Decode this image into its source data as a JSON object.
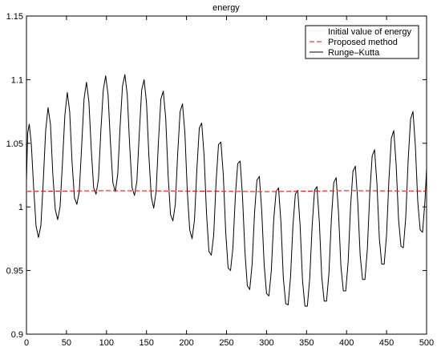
{
  "chart_data": {
    "type": "line",
    "title": "energy",
    "xlabel": "",
    "ylabel": "",
    "xlim": [
      0,
      500
    ],
    "ylim": [
      0.9,
      1.15
    ],
    "x_ticks": [
      0,
      50,
      100,
      150,
      200,
      250,
      300,
      350,
      400,
      450,
      500
    ],
    "y_ticks": [
      0.9,
      0.95,
      1,
      1.05,
      1.1,
      1.15
    ],
    "y_tick_labels": [
      "0.9",
      "0.95",
      "1",
      "1.05",
      "1.1",
      "1.15"
    ],
    "grid": false,
    "legend_position": "top-right",
    "series": [
      {
        "name": "Initial value of energy",
        "style": "dotted",
        "color": "#ffd0d0",
        "x": [
          0,
          500
        ],
        "y": [
          1.0125,
          1.0125
        ]
      },
      {
        "name": "Proposed method",
        "style": "dashed",
        "color": "#ff0000",
        "x": [
          0,
          100,
          200,
          300,
          400,
          500
        ],
        "y": [
          1.0122,
          1.0128,
          1.0125,
          1.012,
          1.0128,
          1.0125
        ]
      },
      {
        "name": "Runge–Kutta",
        "style": "solid",
        "color": "#000000",
        "points": [
          [
            0,
            1.02
          ],
          [
            1.5,
            1.058
          ],
          [
            3.5,
            1.065
          ],
          [
            6,
            1.05
          ],
          [
            9,
            1.015
          ],
          [
            12,
            0.985
          ],
          [
            15,
            0.976
          ],
          [
            18,
            0.985
          ],
          [
            21,
            1.02
          ],
          [
            24,
            1.06
          ],
          [
            27,
            1.078
          ],
          [
            30,
            1.065
          ],
          [
            33,
            1.025
          ],
          [
            36,
            0.998
          ],
          [
            39,
            0.99
          ],
          [
            42,
            1.0
          ],
          [
            45,
            1.035
          ],
          [
            48,
            1.072
          ],
          [
            51,
            1.09
          ],
          [
            54,
            1.075
          ],
          [
            57,
            1.035
          ],
          [
            60,
            1.007
          ],
          [
            63,
            1.002
          ],
          [
            66,
            1.012
          ],
          [
            69,
            1.048
          ],
          [
            72,
            1.085
          ],
          [
            75,
            1.098
          ],
          [
            78,
            1.083
          ],
          [
            81,
            1.045
          ],
          [
            84,
            1.015
          ],
          [
            87,
            1.01
          ],
          [
            90,
            1.022
          ],
          [
            93,
            1.06
          ],
          [
            96,
            1.092
          ],
          [
            99,
            1.103
          ],
          [
            102,
            1.088
          ],
          [
            105,
            1.05
          ],
          [
            108,
            1.019
          ],
          [
            111,
            1.012
          ],
          [
            114,
            1.025
          ],
          [
            117,
            1.063
          ],
          [
            120,
            1.095
          ],
          [
            123,
            1.104
          ],
          [
            126,
            1.088
          ],
          [
            129,
            1.048
          ],
          [
            132,
            1.015
          ],
          [
            135,
            1.009
          ],
          [
            138,
            1.02
          ],
          [
            141,
            1.058
          ],
          [
            144,
            1.092
          ],
          [
            147,
            1.1
          ],
          [
            150,
            1.082
          ],
          [
            153,
            1.04
          ],
          [
            156,
            1.008
          ],
          [
            159,
            0.999
          ],
          [
            162,
            1.012
          ],
          [
            165,
            1.052
          ],
          [
            168,
            1.085
          ],
          [
            171,
            1.091
          ],
          [
            174,
            1.07
          ],
          [
            177,
            1.025
          ],
          [
            180,
            0.994
          ],
          [
            183,
            0.989
          ],
          [
            186,
            1.002
          ],
          [
            189,
            1.042
          ],
          [
            192,
            1.075
          ],
          [
            195,
            1.081
          ],
          [
            198,
            1.058
          ],
          [
            201,
            1.012
          ],
          [
            204,
            0.982
          ],
          [
            207,
            0.975
          ],
          [
            210,
            0.99
          ],
          [
            213,
            1.03
          ],
          [
            216,
            1.062
          ],
          [
            219,
            1.066
          ],
          [
            222,
            1.04
          ],
          [
            225,
            0.995
          ],
          [
            228,
            0.965
          ],
          [
            231,
            0.962
          ],
          [
            234,
            0.978
          ],
          [
            237,
            1.02
          ],
          [
            240,
            1.049
          ],
          [
            243,
            1.051
          ],
          [
            246,
            1.025
          ],
          [
            249,
            0.98
          ],
          [
            252,
            0.952
          ],
          [
            255,
            0.95
          ],
          [
            258,
            0.968
          ],
          [
            261,
            1.008
          ],
          [
            264,
            1.034
          ],
          [
            267,
            1.036
          ],
          [
            270,
            1.008
          ],
          [
            273,
            0.965
          ],
          [
            276,
            0.938
          ],
          [
            279,
            0.935
          ],
          [
            282,
            0.955
          ],
          [
            285,
            0.995
          ],
          [
            288,
            1.021
          ],
          [
            291,
            1.024
          ],
          [
            294,
            0.997
          ],
          [
            297,
            0.955
          ],
          [
            300,
            0.932
          ],
          [
            303,
            0.93
          ],
          [
            306,
            0.95
          ],
          [
            309,
            0.99
          ],
          [
            312,
            1.012
          ],
          [
            315,
            1.015
          ],
          [
            318,
            0.988
          ],
          [
            321,
            0.944
          ],
          [
            324,
            0.924
          ],
          [
            327,
            0.923
          ],
          [
            330,
            0.945
          ],
          [
            333,
            0.985
          ],
          [
            336,
            1.01
          ],
          [
            339,
            1.013
          ],
          [
            342,
            0.985
          ],
          [
            345,
            0.942
          ],
          [
            348,
            0.922
          ],
          [
            351,
            0.922
          ],
          [
            354,
            0.944
          ],
          [
            357,
            0.985
          ],
          [
            360,
            1.013
          ],
          [
            363,
            1.016
          ],
          [
            366,
            0.988
          ],
          [
            369,
            0.945
          ],
          [
            372,
            0.926
          ],
          [
            375,
            0.926
          ],
          [
            378,
            0.948
          ],
          [
            381,
            0.99
          ],
          [
            384,
            1.019
          ],
          [
            387,
            1.023
          ],
          [
            390,
            0.995
          ],
          [
            393,
            0.953
          ],
          [
            396,
            0.934
          ],
          [
            399,
            0.934
          ],
          [
            402,
            0.957
          ],
          [
            405,
            1.0
          ],
          [
            408,
            1.028
          ],
          [
            411,
            1.032
          ],
          [
            414,
            1.004
          ],
          [
            417,
            0.962
          ],
          [
            420,
            0.943
          ],
          [
            423,
            0.943
          ],
          [
            426,
            0.967
          ],
          [
            429,
            1.01
          ],
          [
            432,
            1.04
          ],
          [
            435,
            1.045
          ],
          [
            438,
            1.018
          ],
          [
            441,
            0.975
          ],
          [
            444,
            0.955
          ],
          [
            447,
            0.955
          ],
          [
            450,
            0.978
          ],
          [
            453,
            1.022
          ],
          [
            456,
            1.054
          ],
          [
            459,
            1.06
          ],
          [
            462,
            1.033
          ],
          [
            465,
            0.99
          ],
          [
            468,
            0.969
          ],
          [
            471,
            0.968
          ],
          [
            474,
            0.992
          ],
          [
            477,
            1.037
          ],
          [
            480,
            1.069
          ],
          [
            483,
            1.075
          ],
          [
            486,
            1.048
          ],
          [
            489,
            1.004
          ],
          [
            492,
            0.982
          ],
          [
            495,
            0.98
          ],
          [
            498,
            1.005
          ],
          [
            500,
            1.03
          ],
          [
            502,
            1.06
          ],
          [
            505,
            1.087
          ],
          [
            508,
            1.082
          ],
          [
            510,
            1.07
          ]
        ]
      }
    ]
  }
}
